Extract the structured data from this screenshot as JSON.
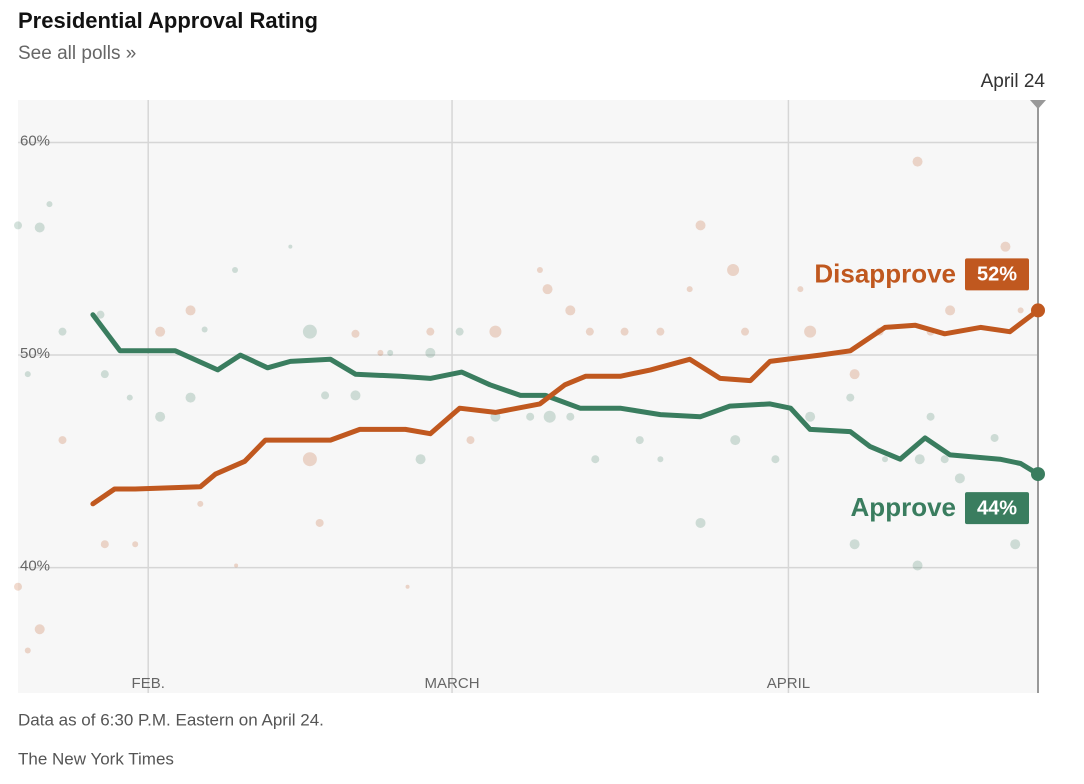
{
  "chart_data": {
    "type": "line",
    "title": "Presidential Approval Rating",
    "subtitle": "See all polls »",
    "note": "Data as of 6:30 P.M. Eastern on April 24.",
    "source": "The New York Times",
    "date_marker": {
      "value": 114,
      "label": "April 24"
    },
    "xlim": [
      20,
      114
    ],
    "ylim": [
      34.1,
      62
    ],
    "xticks": [
      {
        "value": 32,
        "label": "FEB."
      },
      {
        "value": 60,
        "label": "MARCH"
      },
      {
        "value": 91,
        "label": "APRIL"
      }
    ],
    "yticks": [
      {
        "value": 40,
        "label": "40%"
      },
      {
        "value": 50,
        "label": "50%"
      },
      {
        "value": 60,
        "label": "60%"
      }
    ],
    "grid": true,
    "series": [
      {
        "name": "Approve",
        "color": "#3a7d5f",
        "end_label": "44%",
        "x": [
          26.9,
          29.4,
          34.5,
          38.4,
          40.5,
          43.0,
          45.1,
          48.8,
          51.1,
          55.2,
          58.0,
          60.9,
          63.5,
          66.3,
          68.6,
          71.8,
          75.5,
          79.2,
          82.9,
          85.6,
          89.3,
          91.2,
          93.0,
          96.7,
          98.5,
          101.3,
          103.6,
          105.9,
          110.5,
          112.4,
          114
        ],
        "values": [
          51.9,
          50.2,
          50.2,
          49.3,
          50.0,
          49.4,
          49.7,
          49.8,
          49.1,
          49.0,
          48.9,
          49.2,
          48.6,
          48.1,
          48.1,
          47.5,
          47.5,
          47.2,
          47.1,
          47.6,
          47.7,
          47.5,
          46.5,
          46.4,
          45.7,
          45.1,
          46.1,
          45.3,
          45.1,
          44.9,
          44.4
        ]
      },
      {
        "name": "Disapprove",
        "color": "#c0581f",
        "end_label": "52%",
        "x": [
          26.9,
          28.9,
          30.8,
          36.8,
          38.2,
          40.9,
          42.8,
          48.8,
          51.5,
          55.7,
          58.0,
          60.7,
          64.0,
          68.1,
          70.4,
          72.3,
          75.5,
          78.3,
          81.9,
          84.7,
          87.5,
          89.3,
          93.9,
          96.7,
          99.9,
          102.7,
          105.4,
          108.7,
          111.4,
          114
        ],
        "values": [
          43.0,
          43.7,
          43.7,
          43.8,
          44.4,
          45.0,
          46.0,
          46.0,
          46.5,
          46.5,
          46.3,
          47.5,
          47.3,
          47.7,
          48.6,
          49.0,
          49.0,
          49.3,
          49.8,
          48.9,
          48.8,
          49.7,
          50.0,
          50.2,
          51.3,
          51.4,
          51.0,
          51.3,
          51.1,
          52.1
        ]
      }
    ],
    "polls": [
      {
        "color": "#3a7d5f",
        "x": [
          20.0,
          22.0,
          22.9,
          24.1,
          20.9,
          27.6,
          28.0,
          30.3,
          33.1,
          35.9,
          37.2,
          40.0,
          45.1,
          46.9,
          48.3,
          51.1,
          54.3,
          57.1,
          58.0,
          60.7,
          64.0,
          67.2,
          69.0,
          70.9,
          73.2,
          77.3,
          79.2,
          82.9,
          86.1,
          89.8,
          93.0,
          96.7,
          97.1,
          99.9,
          103.1,
          102.9,
          104.1,
          105.4,
          106.8,
          110.0,
          111.9
        ],
        "values": [
          56.1,
          56.0,
          57.1,
          51.1,
          49.1,
          51.9,
          49.1,
          48.0,
          47.1,
          48.0,
          51.2,
          54.0,
          55.1,
          51.1,
          48.1,
          48.1,
          50.1,
          45.1,
          50.1,
          51.1,
          47.1,
          47.1,
          47.1,
          47.1,
          45.1,
          46.0,
          45.1,
          42.1,
          46.0,
          45.1,
          47.1,
          48.0,
          41.1,
          45.1,
          45.1,
          40.1,
          47.1,
          45.1,
          44.2,
          46.1,
          41.1
        ],
        "sizes": [
          4,
          5,
          3,
          4,
          3,
          4,
          4,
          3,
          5,
          5,
          3,
          3,
          2,
          7,
          4,
          5,
          3,
          5,
          5,
          4,
          5,
          4,
          6,
          4,
          4,
          4,
          3,
          5,
          5,
          4,
          5,
          4,
          5,
          3,
          5,
          5,
          4,
          4,
          5,
          4,
          5
        ]
      },
      {
        "color": "#c0581f",
        "x": [
          20.0,
          22.0,
          20.9,
          24.1,
          28.0,
          30.8,
          33.1,
          35.9,
          36.8,
          40.1,
          46.9,
          47.8,
          51.1,
          53.4,
          55.9,
          58.0,
          61.7,
          64.0,
          68.1,
          68.8,
          70.9,
          72.7,
          75.9,
          79.2,
          82.9,
          81.9,
          85.9,
          87.0,
          92.1,
          93.0,
          97.1,
          99.4,
          102.9,
          104.1,
          105.9,
          111.0,
          109.1,
          112.4
        ],
        "values": [
          39.1,
          37.1,
          36.1,
          46.0,
          41.1,
          41.1,
          51.1,
          52.1,
          43.0,
          40.1,
          45.1,
          42.1,
          51.0,
          50.1,
          39.1,
          51.1,
          46.0,
          51.1,
          54.0,
          53.1,
          52.1,
          51.1,
          51.1,
          51.1,
          56.1,
          53.1,
          54.0,
          51.1,
          53.1,
          51.1,
          49.1,
          51.1,
          59.1,
          51.1,
          52.1,
          55.1,
          53.6,
          52.1
        ],
        "sizes": [
          4,
          5,
          3,
          4,
          4,
          3,
          5,
          5,
          3,
          2,
          7,
          4,
          4,
          3,
          2,
          4,
          4,
          6,
          3,
          5,
          5,
          4,
          4,
          4,
          5,
          3,
          6,
          4,
          3,
          6,
          5,
          4,
          5,
          4,
          5,
          5,
          4,
          3
        ]
      }
    ]
  }
}
